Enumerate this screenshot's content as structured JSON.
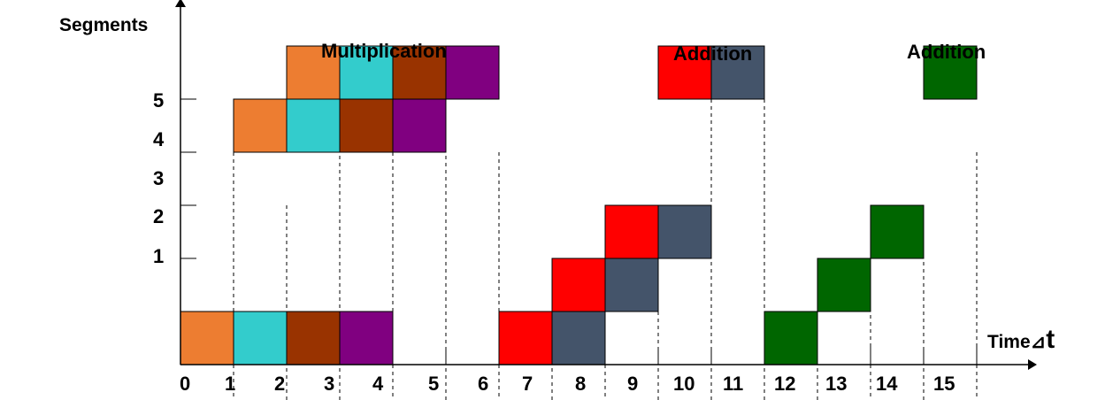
{
  "y_axis_title": "Segments",
  "x_axis_title": "Time",
  "delta_symbol": "⊿",
  "time_unit": "t",
  "section_labels": [
    "Multiplication",
    "Addition",
    "Addition"
  ],
  "y_tick_labels": [
    "5",
    "4",
    "3",
    "2",
    "1"
  ],
  "x_tick_labels": [
    "0",
    "1",
    "2",
    "3",
    "4",
    "5",
    "6",
    "7",
    "8",
    "9",
    "10",
    "11",
    "12",
    "13",
    "14",
    "15"
  ],
  "colors": {
    "orange": "#ED7D31",
    "cyan": "#33CCCC",
    "brown": "#993300",
    "purple": "#800080",
    "red": "#FF0000",
    "slate": "#44546A",
    "green": "#006600"
  },
  "blocks": [
    {
      "time": 0,
      "level": 0,
      "color": "orange"
    },
    {
      "time": 1,
      "level": 0,
      "color": "cyan"
    },
    {
      "time": 2,
      "level": 0,
      "color": "brown"
    },
    {
      "time": 3,
      "level": 0,
      "color": "purple"
    },
    {
      "time": 1,
      "level": 4,
      "color": "orange"
    },
    {
      "time": 2,
      "level": 4,
      "color": "cyan"
    },
    {
      "time": 3,
      "level": 4,
      "color": "brown"
    },
    {
      "time": 4,
      "level": 4,
      "color": "purple"
    },
    {
      "time": 2,
      "level": 5,
      "color": "orange"
    },
    {
      "time": 3,
      "level": 5,
      "color": "cyan"
    },
    {
      "time": 4,
      "level": 5,
      "color": "brown"
    },
    {
      "time": 5,
      "level": 5,
      "color": "purple"
    },
    {
      "time": 6,
      "level": 0,
      "color": "red"
    },
    {
      "time": 7,
      "level": 1,
      "color": "red"
    },
    {
      "time": 8,
      "level": 2,
      "color": "red"
    },
    {
      "time": 9,
      "level": 5,
      "color": "red"
    },
    {
      "time": 7,
      "level": 0,
      "color": "slate"
    },
    {
      "time": 8,
      "level": 1,
      "color": "slate"
    },
    {
      "time": 9,
      "level": 2,
      "color": "slate"
    },
    {
      "time": 10,
      "level": 5,
      "color": "slate"
    },
    {
      "time": 11,
      "level": 0,
      "color": "green"
    },
    {
      "time": 12,
      "level": 1,
      "color": "green"
    },
    {
      "time": 13,
      "level": 2,
      "color": "green"
    },
    {
      "time": 14,
      "level": 5,
      "color": "green"
    }
  ]
}
